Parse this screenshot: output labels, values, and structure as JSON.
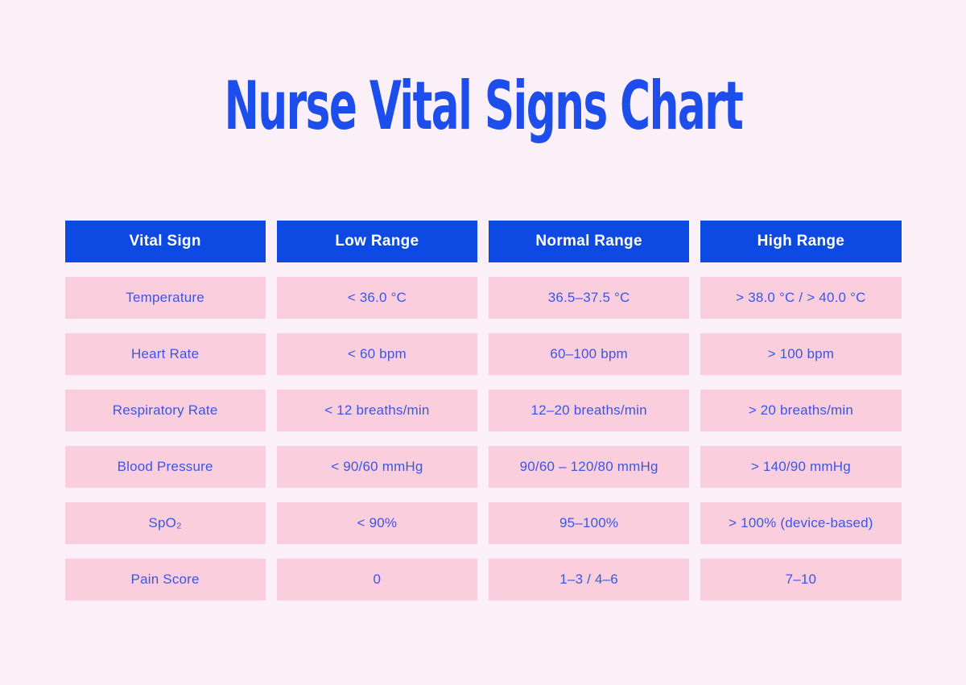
{
  "page": {
    "title": "Nurse Vital Signs Chart"
  },
  "colors": {
    "page_background": "#FBF0F7",
    "title_blue": "#1D4DEB",
    "header_background_blue": "#0C4AE3",
    "header_text": "#FFFFFF",
    "cell_background_pink": "#FBCEDE",
    "cell_text_blue": "#3C57DE"
  },
  "table": {
    "headers": [
      "Vital Sign",
      "Low Range",
      "Normal Range",
      "High Range"
    ],
    "rows": [
      {
        "label": "Temperature",
        "low": "< 36.0 °C",
        "normal": "36.5–37.5 °C",
        "high": "> 38.0 °C / > 40.0 °C"
      },
      {
        "label": "Heart Rate",
        "low": "< 60 bpm",
        "normal": "60–100 bpm",
        "high": "> 100 bpm"
      },
      {
        "label": "Respiratory Rate",
        "low": "< 12 breaths/min",
        "normal": "12–20 breaths/min",
        "high": "> 20 breaths/min"
      },
      {
        "label": "Blood Pressure",
        "low": "< 90/60 mmHg",
        "normal": "90/60 – 120/80 mmHg",
        "high": "> 140/90 mmHg"
      },
      {
        "label": "SpO₂",
        "low": "< 90%",
        "normal": "95–100%",
        "high": "> 100% (device-based)"
      },
      {
        "label": "Pain Score",
        "low": "0",
        "normal": "1–3 / 4–6",
        "high": "7–10"
      }
    ]
  },
  "chart_data": {
    "type": "table",
    "title": "Nurse Vital Signs Chart",
    "columns": [
      "Vital Sign",
      "Low Range",
      "Normal Range",
      "High Range"
    ],
    "rows": [
      [
        "Temperature",
        "< 36.0 °C",
        "36.5–37.5 °C",
        "> 38.0 °C / > 40.0 °C"
      ],
      [
        "Heart Rate",
        "< 60 bpm",
        "60–100 bpm",
        "> 100 bpm"
      ],
      [
        "Respiratory Rate",
        "< 12 breaths/min",
        "12–20 breaths/min",
        "> 20 breaths/min"
      ],
      [
        "Blood Pressure",
        "< 90/60 mmHg",
        "90/60 – 120/80 mmHg",
        "> 140/90 mmHg"
      ],
      [
        "SpO₂",
        "< 90%",
        "95–100%",
        "> 100% (device-based)"
      ],
      [
        "Pain Score",
        "0",
        "1–3 / 4–6",
        "7–10"
      ]
    ]
  }
}
